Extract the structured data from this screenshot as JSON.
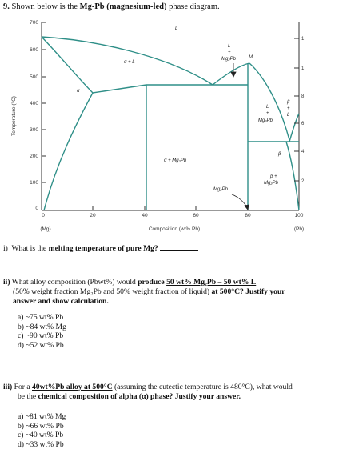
{
  "title": {
    "number": "9.",
    "lead": "Shown below is the",
    "bold": "Mg-Pb (magnesium-led)",
    "trail": "phase diagram."
  },
  "diagram": {
    "y_tick_labels": [
      "700",
      "600",
      "500",
      "400",
      "300",
      "200",
      "100",
      "0"
    ],
    "x_tick_labels": [
      "0",
      "20",
      "40",
      "60",
      "80",
      "100"
    ],
    "x_axis_label": "Composition (wt% Pb)",
    "y_axis_label": "Temperature (°C)",
    "left_end_label": "(Mg)",
    "right_end_label": "(Pb)",
    "regions": {
      "liquid": "L",
      "alpha": "α",
      "alpha_liquid": "α + L",
      "alpha_mg2pb": "α + Mg₂Pb",
      "liq_mg2pb_left_1": "L",
      "liq_mg2pb_left_2": "+",
      "liq_mg2pb_left_3": "Mg₂Pb",
      "point_m": "M",
      "liq_mg2pb_right_1": "L",
      "liq_mg2pb_right_2": "+",
      "liq_mg2pb_right_3": "Mg₂Pb",
      "beta_liquid_1": "β",
      "beta_liquid_2": "+",
      "beta_liquid_3": "L",
      "beta": "β",
      "beta_mg2pb_1": "β +",
      "beta_mg2pb_2": "Mg₂Pb",
      "compound": "Mg₂Pb"
    },
    "right_scale_labels": [
      "1",
      "1",
      "8",
      "6",
      "4",
      "2"
    ]
  },
  "q1": {
    "label": "i)",
    "text": "What is the",
    "bold": "melting temperature of pure Mg?"
  },
  "q2": {
    "label": "ii)",
    "text_a": "What alloy composition (Pbwt%) would",
    "bold_a": "produce",
    "bold_u": "50 wt% Mg₂Pb – 50 wt% L",
    "line2_a": "(50% weight fraction Mg₂Pb and 50% weight fraction of liquid)",
    "line2_u": "at 500°C?",
    "line2_b": "Justify your",
    "line3": "answer and show calculation.",
    "options": [
      "a)  ~75 wt% Pb",
      "b)  ~84 wt% Mg",
      "c)  ~90 wt% Pb",
      "d)  ~52 wt% Pb"
    ]
  },
  "q3": {
    "label": "iii)",
    "text_a": "For a",
    "bold_u": "40wt%Pb alloy at 500°C",
    "text_b": "(assuming the eutectic temperature is 480°C), what would",
    "line2_a": "be the",
    "line2_bold": "chemical composition of alpha (α) phase?  Justify your answer.",
    "options": [
      "a)  ~81 wt% Mg",
      "b)  ~66 wt% Pb",
      "c)  ~40 wt% Pb",
      "d)  ~33 wt% Pb"
    ]
  }
}
